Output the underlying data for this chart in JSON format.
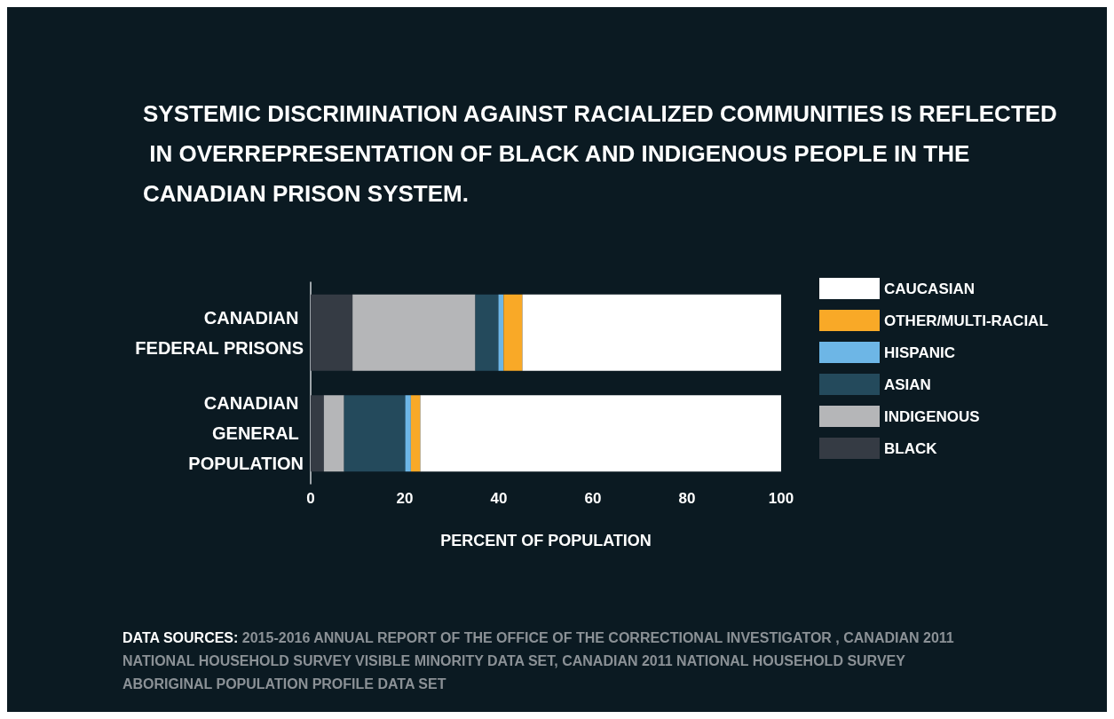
{
  "chart_data": {
    "type": "bar",
    "orientation": "horizontal",
    "stacked": true,
    "title": "SYSTEMIC DISCRIMINATION AGAINST RACIALIZED COMMUNITIES IS REFLECTED IN OVERREPRESENTATION OF BLACK AND INDIGENOUS PEOPLE IN THE CANADIAN PRISON SYSTEM.",
    "categories": [
      "CANADIAN FEDERAL PRISONS",
      "CANADIAN GENERAL POPULATION"
    ],
    "series": [
      {
        "name": "BLACK",
        "color": "#353b44",
        "values": [
          8.9,
          2.8
        ]
      },
      {
        "name": "INDIGENOUS",
        "color": "#b5b6b8",
        "values": [
          26.1,
          4.3
        ]
      },
      {
        "name": "ASIAN",
        "color": "#244a5c",
        "values": [
          4.9,
          13.0
        ]
      },
      {
        "name": "HISPANIC",
        "color": "#6db6e6",
        "values": [
          1.1,
          1.2
        ]
      },
      {
        "name": "OTHER/MULTI-RACIAL",
        "color": "#f9a927",
        "values": [
          4.0,
          2.0
        ]
      },
      {
        "name": "CAUCASIAN",
        "color": "#ffffff",
        "values": [
          55.0,
          76.7
        ]
      }
    ],
    "xlim": [
      0,
      100
    ],
    "xticks": [
      0,
      20,
      40,
      60,
      80,
      100
    ],
    "xlabel": "PERCENT OF POPULATION",
    "legend": "right",
    "grid": false,
    "annotations": [
      "DATA SOURCES: 2015-2016 ANNUAL REPORT OF THE OFFICE OF THE CORRECTIONAL INVESTIGATOR , CANADIAN 2011 NATIONAL HOUSEHOLD SURVEY VISIBLE MINORITY DATA SET, CANADIAN 2011 NATIONAL HOUSEHOLD SURVEY ABORIGINAL POPULATION PROFILE DATA SET"
    ]
  }
}
